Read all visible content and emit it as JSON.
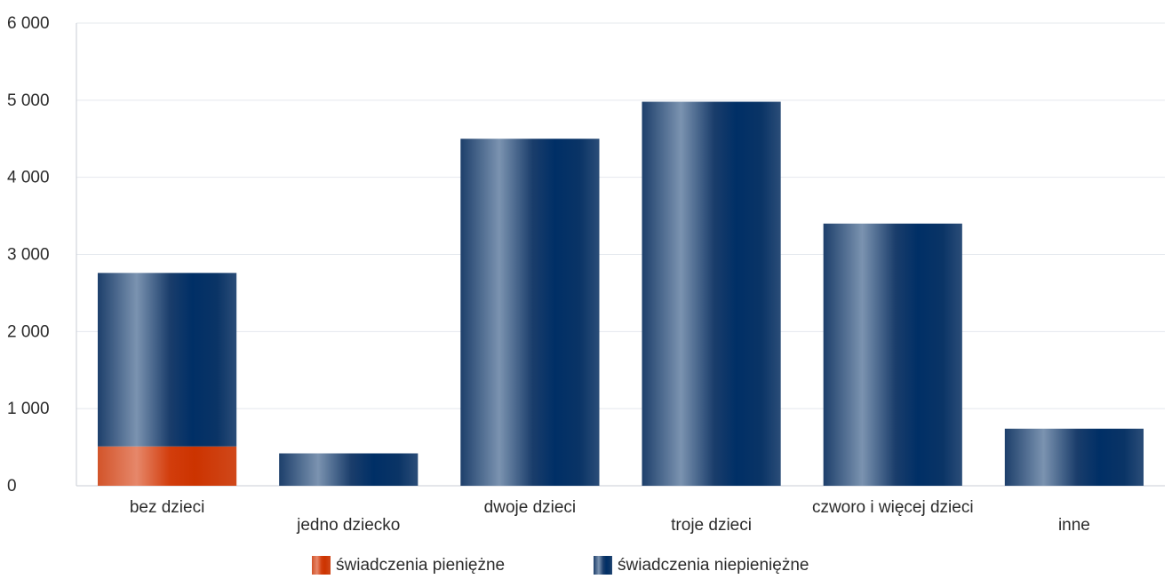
{
  "chart_data": {
    "type": "bar",
    "stacked": true,
    "categories": [
      "bez dzieci",
      "jedno dziecko",
      "dwoje dzieci",
      "troje dzieci",
      "czworo i więcej dzieci",
      "inne"
    ],
    "series": [
      {
        "name": "świadczenia pieniężne",
        "color": "#cc3300",
        "values": [
          510,
          0,
          0,
          0,
          0,
          0
        ]
      },
      {
        "name": "świadczenia niepieniężne",
        "color": "#003366",
        "values": [
          2250,
          420,
          4500,
          4980,
          3400,
          740
        ]
      }
    ],
    "y_ticks": [
      "0",
      "1 000",
      "2 000",
      "3 000",
      "4 000",
      "5 000",
      "6 000"
    ],
    "ylim": [
      0,
      6000
    ],
    "grid": true,
    "legend_position": "bottom-center"
  }
}
